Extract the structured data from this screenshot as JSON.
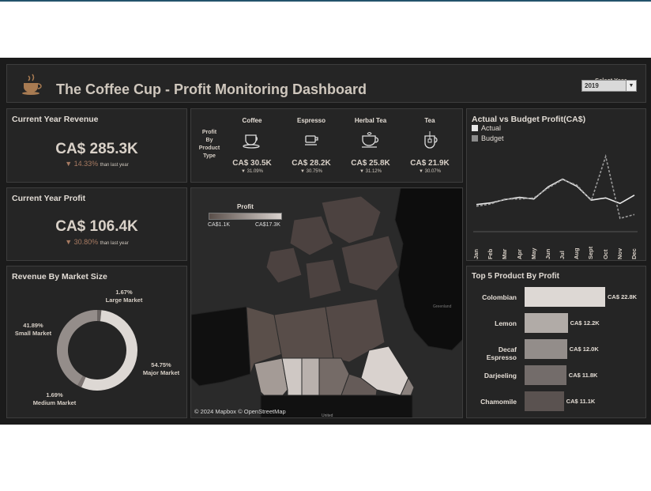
{
  "header": {
    "title": "The Coffee Cup - Profit Monitoring Dashboard",
    "select_year_label": "Select Year",
    "selected_year": "2019",
    "logo_icon": "coffee-cup-icon"
  },
  "revenue": {
    "title": "Current Year Revenue",
    "value": "CA$ 285.3K",
    "change": "▼ 14.33%",
    "change_suffix": "than last year"
  },
  "profit": {
    "title": "Current Year Profit",
    "value": "CA$ 106.4K",
    "change": "▼ 30.80%",
    "change_suffix": "than last year"
  },
  "product_type": {
    "label_lines": [
      "Profit",
      "By",
      "Product",
      "Type"
    ],
    "items": [
      {
        "name": "Coffee",
        "value": "CA$ 30.5K",
        "pct": "▼ 31.09%",
        "icon": "coffee-cup-saucer-icon"
      },
      {
        "name": "Espresso",
        "value": "CA$ 28.2K",
        "pct": "▼ 30.75%",
        "icon": "espresso-cup-icon"
      },
      {
        "name": "Herbal Tea",
        "value": "CA$ 25.8K",
        "pct": "▼ 31.12%",
        "icon": "herbal-tea-cup-icon"
      },
      {
        "name": "Tea",
        "value": "CA$ 21.9K",
        "pct": "▼ 30.07%",
        "icon": "tea-mug-icon"
      }
    ]
  },
  "market_size": {
    "title": "Revenue By Market Size",
    "segments": [
      {
        "name": "Large Market",
        "pct": "1.67%",
        "value": 1.67,
        "color": "#6a6462"
      },
      {
        "name": "Major Market",
        "pct": "54.75%",
        "value": 54.75,
        "color": "#ddd8d4"
      },
      {
        "name": "Medium Market",
        "pct": "1.69%",
        "value": 1.69,
        "color": "#7c7472"
      },
      {
        "name": "Small Market",
        "pct": "41.89%",
        "value": 41.89,
        "color": "#948d8a"
      }
    ]
  },
  "map": {
    "legend_title": "Profit",
    "legend_min": "CA$1.1K",
    "legend_max": "CA$17.3K",
    "attribution": "© 2024 Mapbox © OpenStreetMap",
    "label_greenland": "Greenland",
    "label_united": "United"
  },
  "actual_budget": {
    "title": "Actual vs Budget Profit(CA$)",
    "legend": [
      {
        "name": "Actual",
        "color": "#e8e8e8"
      },
      {
        "name": "Budget",
        "color": "#8c8c8c"
      }
    ]
  },
  "top5": {
    "title": "Top 5 Product By Profit",
    "items": [
      {
        "name": "Colombian",
        "label": "CA$ 22.8K",
        "value": 22.8,
        "color": "#ddd8d4"
      },
      {
        "name": "Lemon",
        "label": "CA$ 12.2K",
        "value": 12.2,
        "color": "#b1aba7"
      },
      {
        "name": "Decaf Espresso",
        "label": "CA$ 12.0K",
        "value": 12.0,
        "color": "#938d8a"
      },
      {
        "name": "Darjeeling",
        "label": "CA$ 11.8K",
        "value": 11.8,
        "color": "#736c6a"
      },
      {
        "name": "Chamomile",
        "label": "CA$ 11.1K",
        "value": 11.1,
        "color": "#5a5250"
      }
    ]
  },
  "chart_data": {
    "type": "line",
    "title": "Actual vs Budget Profit(CA$)",
    "categories": [
      "Jan",
      "Feb",
      "Mar",
      "Apr",
      "May",
      "Jun",
      "Jul",
      "Aug",
      "Sept",
      "Oct",
      "Nov",
      "Dec"
    ],
    "series": [
      {
        "name": "Actual",
        "values": [
          8.9,
          9.2,
          9.8,
          10.2,
          9.9,
          12.1,
          13.5,
          12.2,
          9.7,
          10.1,
          9.1,
          10.6
        ]
      },
      {
        "name": "Budget",
        "values": [
          8.6,
          9.0,
          9.9,
          9.9,
          10.1,
          11.9,
          13.4,
          12.4,
          9.6,
          17.6,
          6.4,
          7.1
        ]
      }
    ],
    "ylim": [
      5,
      19
    ]
  }
}
